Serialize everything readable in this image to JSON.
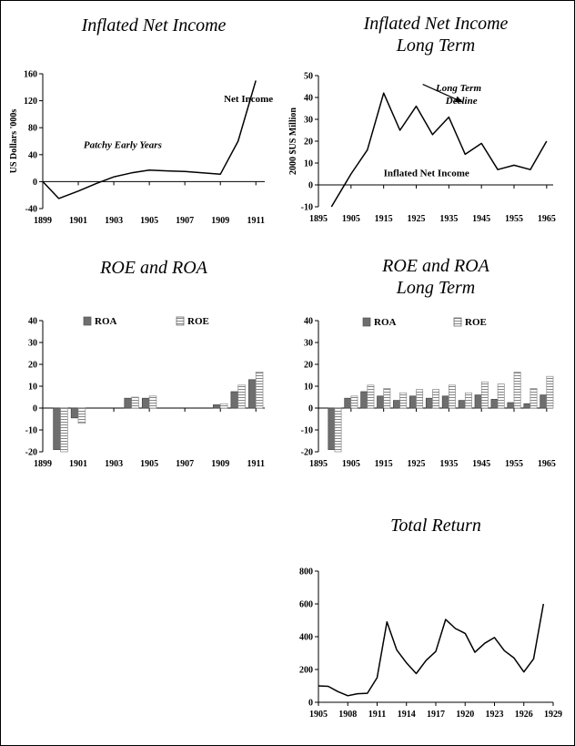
{
  "chart_data": [
    {
      "id": "c1",
      "type": "line",
      "title": [
        "Inflated Net Income"
      ],
      "ylabel": "US Dollars '000s",
      "ylim": [
        -40,
        160
      ],
      "yticks": [
        -40,
        0,
        40,
        80,
        120,
        160
      ],
      "xlim": [
        1899,
        1911.5
      ],
      "xticks": [
        1899,
        1901,
        1903,
        1905,
        1907,
        1909,
        1911
      ],
      "series": [
        {
          "x": [
            1899,
            1899.9,
            1901,
            1902,
            1903,
            1904,
            1905,
            1906,
            1907,
            1908,
            1909,
            1910,
            1911
          ],
          "y": [
            0,
            -25,
            -14,
            -3,
            7,
            13,
            17,
            16,
            15,
            13,
            11,
            60,
            150
          ]
        }
      ],
      "annotations": [
        {
          "text": "Net Income",
          "x": 1909.2,
          "y": 118,
          "style": "bold"
        },
        {
          "text": "Patchy Early Years",
          "x": 1901.3,
          "y": 50,
          "style": "bold-italic"
        }
      ]
    },
    {
      "id": "c2",
      "type": "line",
      "title": [
        "Inflated Net Income",
        "Long Term"
      ],
      "ylabel": "2000 $US Million",
      "ylim": [
        -10,
        50
      ],
      "yticks": [
        -10,
        0,
        10,
        20,
        30,
        40,
        50
      ],
      "xlim": [
        1895,
        1967
      ],
      "xticks": [
        1895,
        1905,
        1915,
        1925,
        1935,
        1945,
        1955,
        1965
      ],
      "series": [
        {
          "x": [
            1899,
            1905,
            1910,
            1915,
            1920,
            1925,
            1930,
            1935,
            1940,
            1945,
            1950,
            1955,
            1960,
            1965
          ],
          "y": [
            -10,
            5,
            16,
            42,
            25,
            36,
            23,
            31,
            14,
            19,
            7,
            9,
            7,
            20
          ]
        }
      ],
      "annotations": [
        {
          "text": "Long Term",
          "x": 1931,
          "y": 43,
          "style": "bold-italic"
        },
        {
          "text": "Decline",
          "x": 1934,
          "y": 37,
          "style": "bold-italic"
        },
        {
          "text": "Inflated Net Income",
          "x": 1915,
          "y": 4,
          "style": "bold"
        }
      ],
      "arrow": {
        "from": [
          1927,
          46
        ],
        "to": [
          1939,
          38
        ]
      }
    },
    {
      "id": "c3",
      "type": "bar",
      "title": [
        "ROE and ROA"
      ],
      "ylim": [
        -20,
        40
      ],
      "yticks": [
        -20,
        -10,
        0,
        10,
        20,
        30,
        40
      ],
      "xlim": [
        1899,
        1911.5
      ],
      "xticks": [
        1899,
        1901,
        1903,
        1905,
        1907,
        1909,
        1911
      ],
      "x": [
        1900,
        1901,
        1904,
        1905,
        1909,
        1910,
        1911
      ],
      "series": [
        {
          "name": "ROA",
          "values": [
            -19,
            -4.5,
            4.5,
            4.5,
            1.5,
            7.5,
            13
          ]
        },
        {
          "name": "ROE",
          "values": [
            -20,
            -7,
            5,
            5.5,
            2,
            10.5,
            16.5
          ]
        }
      ],
      "legend": "top"
    },
    {
      "id": "c4",
      "type": "bar",
      "title": [
        "ROE and ROA",
        "Long Term"
      ],
      "ylim": [
        -20,
        40
      ],
      "yticks": [
        -20,
        -10,
        0,
        10,
        20,
        30,
        40
      ],
      "xlim": [
        1895,
        1967
      ],
      "xticks": [
        1895,
        1905,
        1915,
        1925,
        1935,
        1945,
        1955,
        1965
      ],
      "x": [
        1900,
        1905,
        1910,
        1915,
        1920,
        1925,
        1930,
        1935,
        1940,
        1945,
        1950,
        1955,
        1960,
        1965
      ],
      "series": [
        {
          "name": "ROA",
          "values": [
            -19,
            4.5,
            7.5,
            5.5,
            3.5,
            5.5,
            4.5,
            5.5,
            3.5,
            6,
            4,
            2.5,
            2,
            6
          ]
        },
        {
          "name": "ROE",
          "values": [
            -20,
            5.5,
            10.5,
            9,
            7,
            8.5,
            8.5,
            10.5,
            7,
            12,
            11,
            16.5,
            9,
            14.5
          ]
        }
      ],
      "legend": "top"
    },
    {
      "id": "c5",
      "type": "line",
      "title": [
        "Total Return"
      ],
      "ylim": [
        0,
        800
      ],
      "yticks": [
        0,
        200,
        400,
        600,
        800
      ],
      "xlim": [
        1905,
        1929
      ],
      "xticks": [
        1905,
        1908,
        1911,
        1914,
        1917,
        1920,
        1923,
        1926,
        1929
      ],
      "series": [
        {
          "x": [
            1905,
            1906,
            1907,
            1908,
            1909,
            1910,
            1911,
            1912,
            1913,
            1914,
            1915,
            1916,
            1917,
            1918,
            1919,
            1920,
            1921,
            1922,
            1923,
            1924,
            1925,
            1926,
            1927,
            1928
          ],
          "y": [
            100,
            97,
            65,
            40,
            52,
            55,
            150,
            490,
            320,
            240,
            175,
            255,
            310,
            505,
            450,
            420,
            305,
            360,
            395,
            315,
            270,
            185,
            265,
            600
          ]
        }
      ]
    }
  ]
}
